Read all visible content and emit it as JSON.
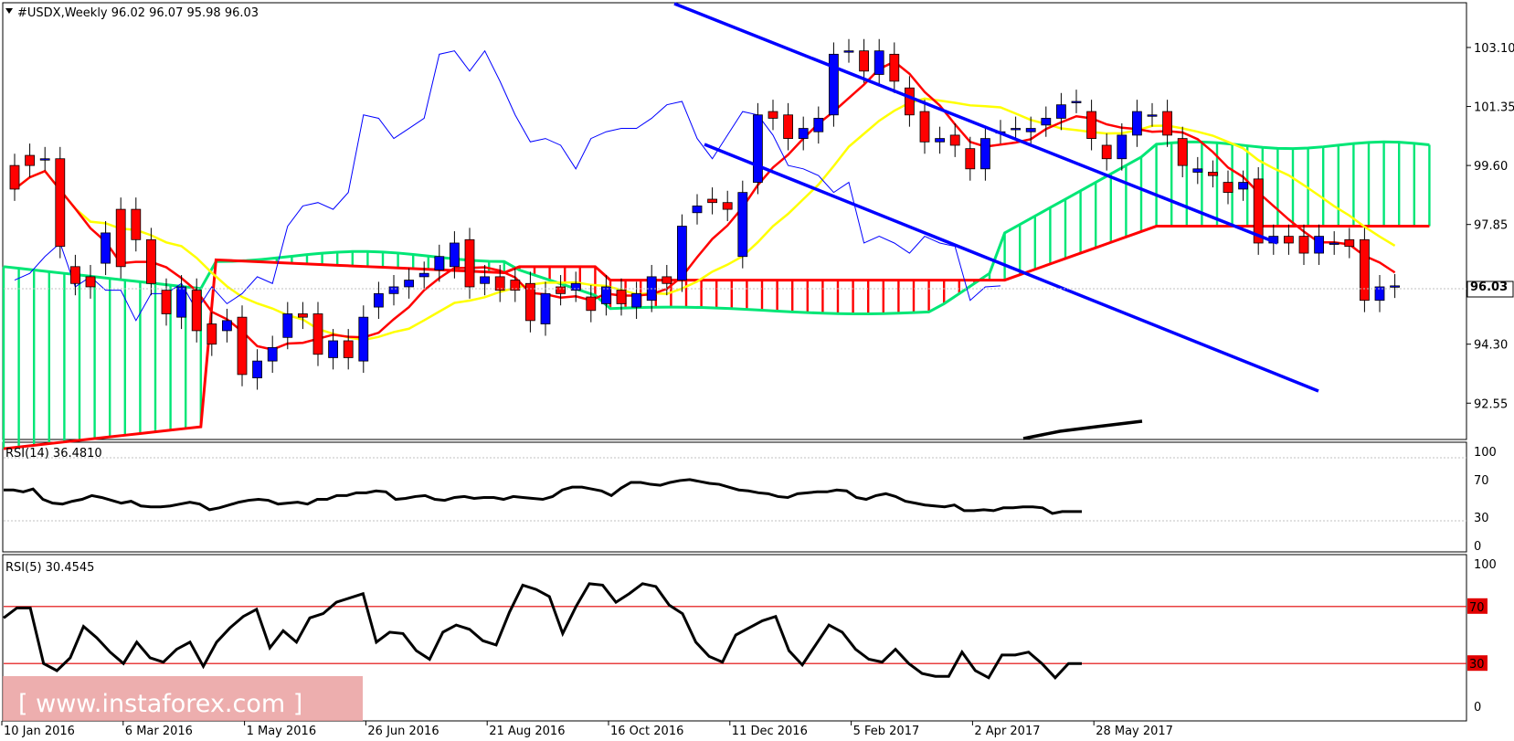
{
  "header": {
    "symbol_label": "#USDX,Weekly",
    "ohlc": "96.02 96.07 95.98 96.03"
  },
  "watermark": "[  www.instaforex.com ]",
  "chart_data": [
    {
      "type": "candlestick",
      "title": "#USDX,Weekly",
      "current_price": "96.03",
      "y_ticks": [
        "103.10",
        "101.35",
        "99.60",
        "97.85",
        "96.03",
        "94.30",
        "92.55"
      ],
      "ylim": [
        91.5,
        104.4
      ],
      "x_ticks": [
        "10 Jan 2016",
        "6 Mar 2016",
        "1 May 2016",
        "26 Jun 2016",
        "21 Aug 2016",
        "16 Oct 2016",
        "11 Dec 2016",
        "5 Feb 2017",
        "2 Apr 2017",
        "28 May 2017"
      ],
      "candles": [
        [
          99.6,
          98.9
        ],
        [
          99.9,
          99.6
        ],
        [
          99.8,
          99.8
        ],
        [
          99.8,
          97.2
        ],
        [
          96.6,
          96.1
        ],
        [
          96.3,
          96.0
        ],
        [
          96.7,
          97.6
        ],
        [
          98.3,
          96.6
        ],
        [
          98.3,
          97.4
        ],
        [
          97.4,
          96.1
        ],
        [
          95.9,
          95.2
        ],
        [
          95.1,
          96.0
        ],
        [
          95.9,
          94.7
        ],
        [
          94.9,
          94.3
        ],
        [
          94.7,
          95.0
        ],
        [
          95.1,
          93.4
        ],
        [
          93.3,
          93.8
        ],
        [
          93.8,
          94.2
        ],
        [
          94.5,
          95.2
        ],
        [
          95.2,
          95.1
        ],
        [
          95.2,
          94.0
        ],
        [
          93.9,
          94.4
        ],
        [
          94.4,
          93.9
        ],
        [
          93.8,
          95.1
        ],
        [
          95.4,
          95.8
        ],
        [
          95.8,
          96.0
        ],
        [
          96.0,
          96.2
        ],
        [
          96.3,
          96.4
        ],
        [
          96.5,
          96.9
        ],
        [
          96.6,
          97.3
        ],
        [
          97.4,
          96.0
        ],
        [
          96.1,
          96.3
        ],
        [
          96.3,
          95.9
        ],
        [
          96.2,
          95.9
        ],
        [
          96.1,
          95.0
        ],
        [
          94.9,
          95.8
        ],
        [
          96.0,
          95.8
        ],
        [
          95.9,
          96.1
        ],
        [
          95.7,
          95.3
        ],
        [
          95.5,
          96.0
        ],
        [
          95.9,
          95.5
        ],
        [
          95.4,
          95.8
        ],
        [
          95.6,
          96.3
        ],
        [
          96.3,
          96.1
        ],
        [
          96.2,
          97.8
        ],
        [
          98.2,
          98.4
        ],
        [
          98.6,
          98.5
        ],
        [
          98.5,
          98.3
        ],
        [
          96.9,
          98.8
        ],
        [
          99.1,
          101.1
        ],
        [
          101.2,
          101.0
        ],
        [
          101.1,
          100.4
        ],
        [
          100.4,
          100.7
        ],
        [
          100.6,
          101.0
        ],
        [
          101.1,
          102.9
        ],
        [
          103.0,
          103.0
        ],
        [
          103.0,
          102.4
        ],
        [
          102.3,
          103.0
        ],
        [
          102.9,
          102.1
        ],
        [
          101.9,
          101.1
        ],
        [
          101.2,
          100.3
        ],
        [
          100.3,
          100.4
        ],
        [
          100.5,
          100.2
        ],
        [
          100.1,
          99.5
        ],
        [
          99.5,
          100.4
        ],
        [
          100.6,
          100.6
        ],
        [
          100.7,
          100.7
        ],
        [
          100.6,
          100.7
        ],
        [
          100.8,
          101.0
        ],
        [
          101.0,
          101.4
        ],
        [
          101.5,
          101.5
        ],
        [
          101.2,
          100.4
        ],
        [
          100.2,
          99.8
        ],
        [
          99.8,
          100.5
        ],
        [
          100.5,
          101.2
        ],
        [
          101.1,
          101.1
        ],
        [
          101.2,
          100.5
        ],
        [
          100.4,
          99.6
        ],
        [
          99.4,
          99.5
        ],
        [
          99.4,
          99.3
        ],
        [
          99.1,
          98.8
        ],
        [
          98.9,
          99.1
        ],
        [
          99.2,
          97.3
        ],
        [
          97.3,
          97.5
        ],
        [
          97.5,
          97.3
        ],
        [
          97.5,
          97.0
        ],
        [
          97.0,
          97.5
        ],
        [
          97.3,
          97.3
        ],
        [
          97.4,
          97.2
        ],
        [
          97.4,
          95.6
        ],
        [
          95.6,
          96.0
        ],
        [
          96.02,
          96.03
        ]
      ]
    },
    {
      "type": "line",
      "title": "RSI(14) 36.4810",
      "y_ticks": [
        "100",
        "70",
        "30",
        "0"
      ],
      "ylim": [
        0,
        100
      ],
      "values": [
        59,
        59,
        57,
        60,
        49,
        45,
        44,
        47,
        49,
        53,
        51,
        48,
        45,
        47,
        42,
        41,
        41,
        42,
        44,
        46,
        44,
        38,
        40,
        43,
        46,
        48,
        49,
        48,
        44,
        45,
        46,
        44,
        49,
        49,
        53,
        53,
        56,
        56,
        58,
        57,
        49,
        50,
        52,
        53,
        49,
        48,
        51,
        52,
        50,
        51,
        51,
        49,
        52,
        51,
        50,
        49,
        52,
        59,
        62,
        62,
        60,
        58,
        53,
        61,
        67,
        67,
        65,
        64,
        67,
        69,
        70,
        68,
        66,
        65,
        62,
        59,
        58,
        56,
        55,
        52,
        51,
        55,
        56,
        57,
        57,
        59,
        58,
        51,
        49,
        53,
        55,
        52,
        47,
        45,
        43,
        42,
        41,
        43,
        37,
        37,
        38,
        37,
        40,
        40,
        41,
        41,
        40,
        34,
        36,
        36,
        36
      ],
      "last": 36.481
    },
    {
      "type": "line",
      "title": "RSI(5) 30.4545",
      "y_ticks": [
        "100",
        "70",
        "30",
        "0"
      ],
      "levels": [
        70,
        30
      ],
      "ylim": [
        0,
        100
      ],
      "values": [
        62,
        69,
        69,
        30,
        25,
        34,
        56,
        48,
        38,
        30,
        45,
        34,
        31,
        40,
        45,
        28,
        45,
        55,
        63,
        68,
        41,
        53,
        45,
        62,
        65,
        73,
        76,
        79,
        45,
        52,
        51,
        39,
        33,
        52,
        57,
        54,
        46,
        43,
        66,
        85,
        82,
        77,
        51,
        70,
        86,
        85,
        73,
        79,
        86,
        84,
        71,
        65,
        45,
        35,
        31,
        50,
        55,
        60,
        63,
        39,
        29,
        43,
        57,
        52,
        40,
        33,
        31,
        40,
        30,
        23,
        21,
        21,
        38,
        25,
        20,
        36,
        36,
        38,
        30,
        20,
        30,
        30
      ],
      "last": 30.4545
    }
  ],
  "overlays": {
    "tenkan_color": "#ff0000",
    "kijun_color": "#ffff00",
    "span_a_color": "#00e676",
    "span_b_color": "#ff0000",
    "chikou_color": "#0000ff",
    "channel_color": "#0000ff",
    "bull_candle": "#0000ff",
    "bear_candle": "#ff0000"
  }
}
